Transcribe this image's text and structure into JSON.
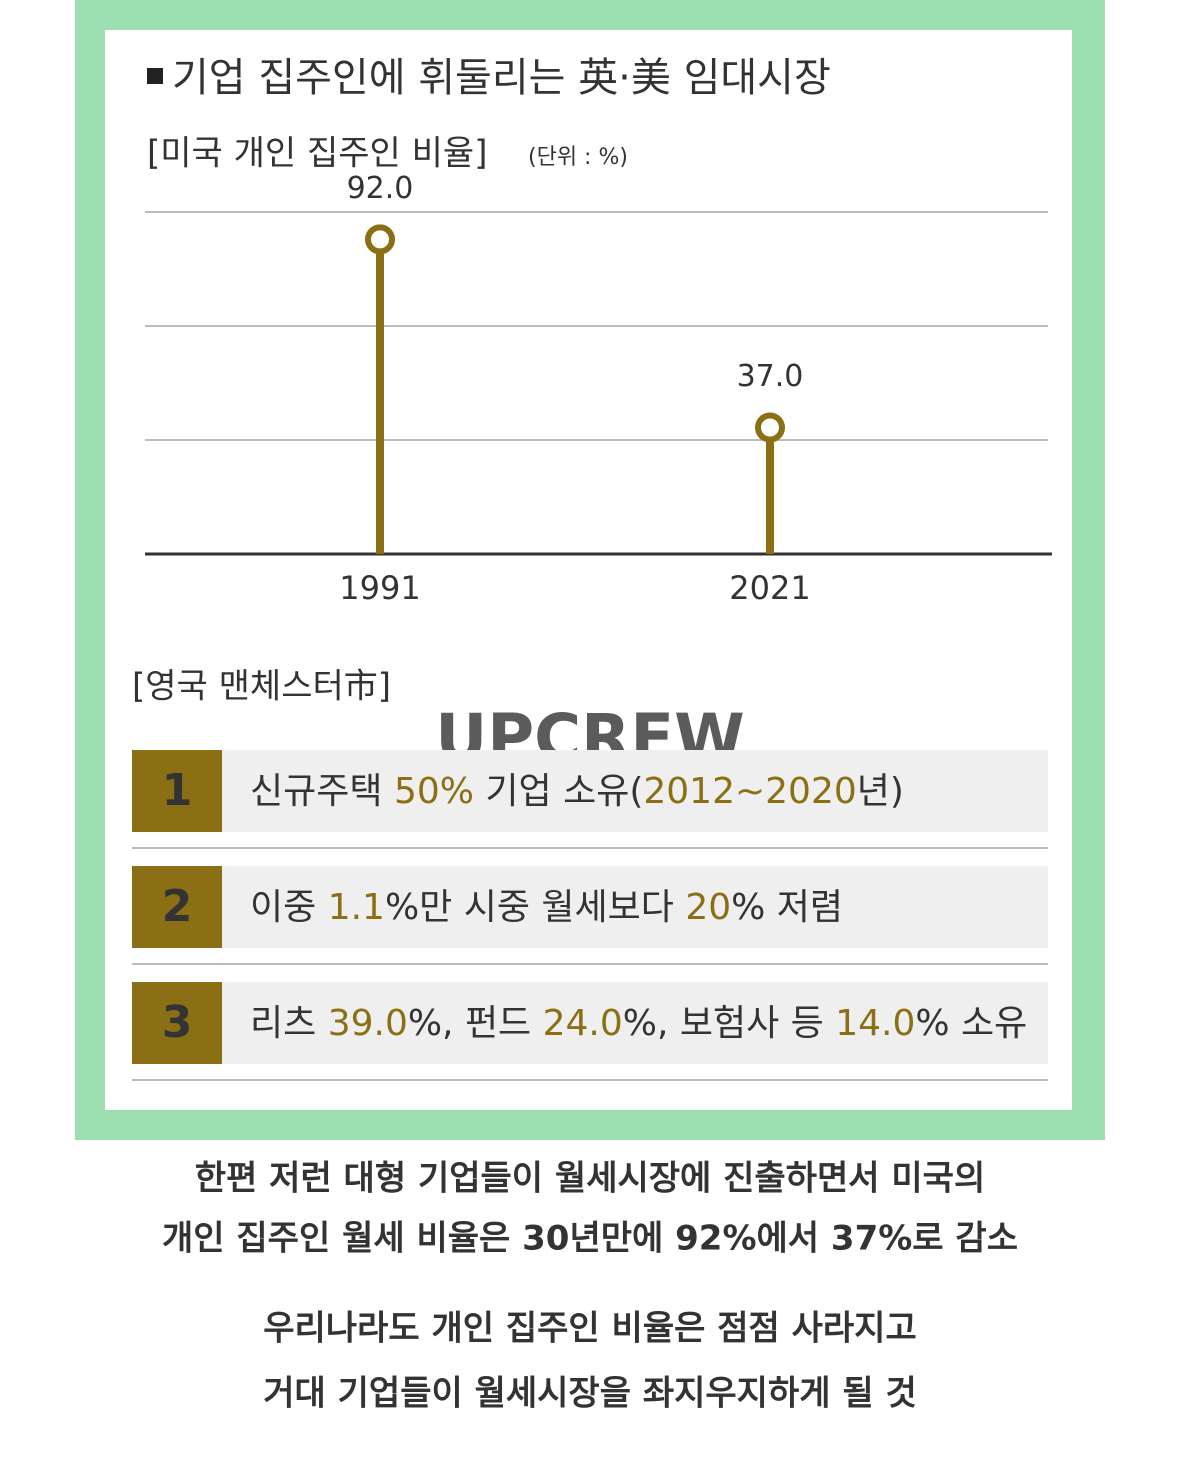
{
  "chart_data": {
    "type": "lollipop",
    "title": "기업 집주인에 휘둘리는 英·美 임대시장",
    "subtitle": "[미국 개인 집주인 비율]",
    "unit": "(단위 : %)",
    "categories": [
      "1991",
      "2021"
    ],
    "values": [
      92.0,
      37.0
    ],
    "value_labels": [
      "92.0",
      "37.0"
    ],
    "color": "#8b6f14",
    "ylim": [
      0,
      100
    ],
    "grid": true
  },
  "section": {
    "heading": "[영국 맨체스터市]",
    "items": [
      {
        "num": "1",
        "parts": [
          "신규주택 ",
          "50%",
          " 기업 소유(",
          "2012~2020",
          "년)"
        ]
      },
      {
        "num": "2",
        "parts": [
          "이중 ",
          "1.1",
          "%만 시중 월세보다 ",
          "20",
          "% 저렴"
        ]
      },
      {
        "num": "3",
        "parts": [
          "리츠 ",
          "39.0",
          "%, 펀드 ",
          "24.0",
          "%, 보험사 등 ",
          "14.0",
          "% 소유"
        ]
      }
    ]
  },
  "watermark": "UPCREW",
  "caption": [
    "한편 저런 대형 기업들이 월세시장에 진출하면서 미국의",
    "개인 집주인 월세 비율은 30년만에 92%에서 37%로 감소",
    "우리나라도 개인 집주인 비율은 점점 사라지고",
    "거대 기업들이 월세시장을 좌지우지하게 될 것"
  ]
}
